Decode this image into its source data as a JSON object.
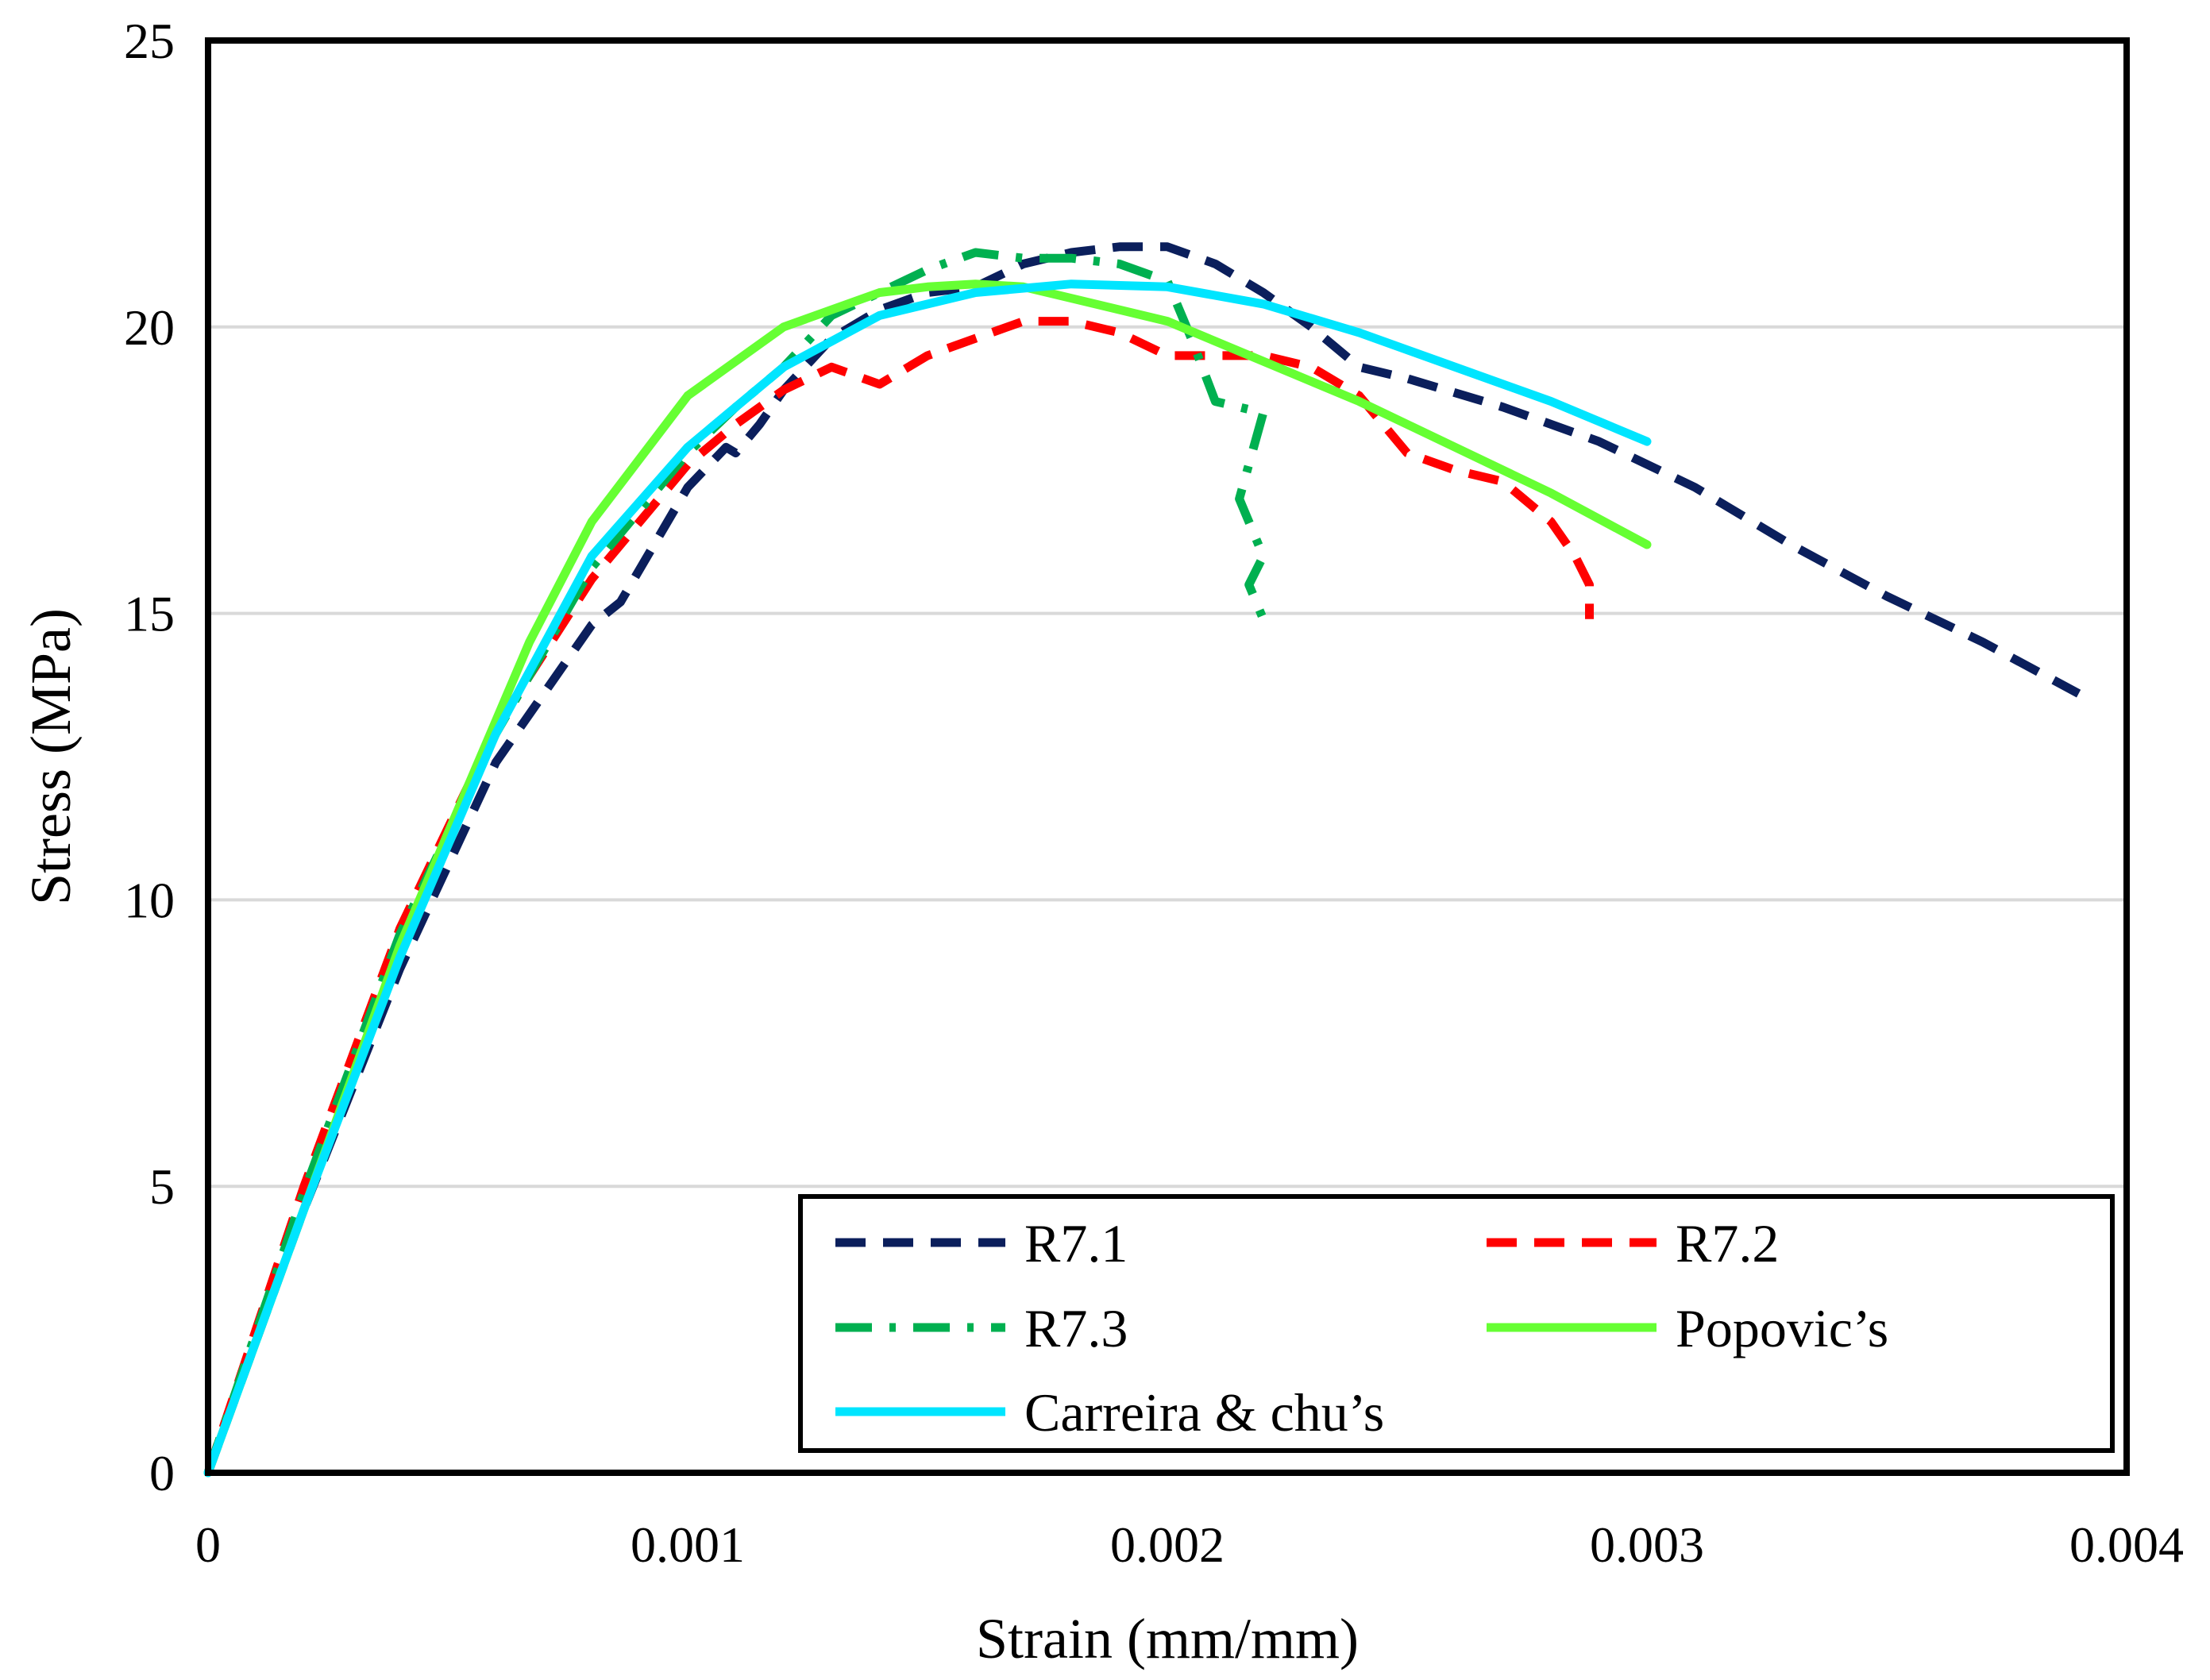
{
  "chart_data": {
    "type": "line",
    "title": "",
    "xlabel": "Strain (mm/mm)",
    "ylabel": "Stress (MPa)",
    "xlim": [
      0,
      0.004
    ],
    "ylim": [
      0,
      25
    ],
    "x_ticks": [
      0,
      0.001,
      0.002,
      0.003,
      0.004
    ],
    "x_tick_labels": [
      "0",
      "0.001",
      "0.002",
      "0.003",
      "0.004"
    ],
    "y_ticks": [
      0,
      5,
      10,
      15,
      20,
      25
    ],
    "y_tick_labels": [
      "0",
      "5",
      "10",
      "15",
      "20",
      "25"
    ],
    "grid": "horizontal",
    "legend_position": "bottom-right",
    "series": [
      {
        "name": "R7.1",
        "color": "#0b1f5c",
        "style": "dashed",
        "x": [
          0,
          0.0002,
          0.0004,
          0.0006,
          0.0008,
          0.00086,
          0.001,
          0.00108,
          0.0011,
          0.00115,
          0.0012,
          0.0013,
          0.0014,
          0.0015,
          0.0016,
          0.0017,
          0.0018,
          0.0019,
          0.002,
          0.0021,
          0.0022,
          0.0023,
          0.0024,
          0.0025,
          0.0027,
          0.0029,
          0.0031,
          0.0033,
          0.0035,
          0.0037,
          0.0039
        ],
        "y": [
          0,
          4.6,
          8.8,
          12.4,
          14.8,
          15.2,
          17.2,
          17.9,
          17.8,
          18.3,
          18.9,
          19.8,
          20.3,
          20.6,
          20.7,
          21.1,
          21.3,
          21.4,
          21.4,
          21.1,
          20.6,
          20.0,
          19.3,
          19.1,
          18.6,
          18.0,
          17.2,
          16.2,
          15.3,
          14.5,
          13.6
        ]
      },
      {
        "name": "R7.2",
        "color": "#ff0000",
        "style": "dashed",
        "x": [
          0,
          0.0002,
          0.0004,
          0.0006,
          0.0008,
          0.001,
          0.0011,
          0.0012,
          0.0013,
          0.0014,
          0.0015,
          0.0016,
          0.0017,
          0.0018,
          0.0019,
          0.002,
          0.0021,
          0.0022,
          0.0023,
          0.0024,
          0.0025,
          0.0026,
          0.0027,
          0.0028,
          0.00285,
          0.00288,
          0.00288
        ],
        "y": [
          0,
          5.0,
          9.5,
          13.0,
          15.6,
          17.6,
          18.3,
          18.9,
          19.3,
          19.0,
          19.5,
          19.8,
          20.1,
          20.1,
          19.9,
          19.5,
          19.5,
          19.5,
          19.3,
          18.8,
          17.8,
          17.5,
          17.3,
          16.6,
          16.0,
          15.5,
          14.9
        ]
      },
      {
        "name": "R7.3",
        "color": "#00b050",
        "style": "dash-dot",
        "x": [
          0,
          0.0002,
          0.0004,
          0.0006,
          0.0008,
          0.001,
          0.0011,
          0.0012,
          0.0013,
          0.0014,
          0.0015,
          0.0016,
          0.0017,
          0.0018,
          0.0019,
          0.002,
          0.00205,
          0.0021,
          0.0022,
          0.00215,
          0.0022,
          0.00217,
          0.0022
        ],
        "y": [
          0,
          4.9,
          9.4,
          12.9,
          15.8,
          17.8,
          18.6,
          19.3,
          20.2,
          20.6,
          21.0,
          21.3,
          21.2,
          21.2,
          21.1,
          20.8,
          19.8,
          18.7,
          18.5,
          17.0,
          16.0,
          15.5,
          14.9
        ]
      },
      {
        "name": "Popovic’s",
        "color": "#66ff33",
        "style": "solid",
        "x": [
          0,
          0.0002,
          0.0004,
          0.00067,
          0.0008,
          0.001,
          0.0012,
          0.0014,
          0.0015,
          0.0016,
          0.0017,
          0.0018,
          0.002,
          0.0022,
          0.0024,
          0.0026,
          0.0028,
          0.003
        ],
        "y": [
          0,
          4.6,
          9.2,
          14.5,
          16.6,
          18.8,
          20.0,
          20.6,
          20.7,
          20.75,
          20.7,
          20.5,
          20.1,
          19.4,
          18.7,
          17.9,
          17.1,
          16.2
        ]
      },
      {
        "name": "Carreira & chu’s",
        "color": "#00e5ff",
        "style": "solid",
        "x": [
          0,
          0.0002,
          0.0004,
          0.0006,
          0.0008,
          0.001,
          0.0012,
          0.0014,
          0.0016,
          0.0018,
          0.002,
          0.0022,
          0.0024,
          0.0026,
          0.0028,
          0.003
        ],
        "y": [
          0,
          4.6,
          9.0,
          12.9,
          16.0,
          17.9,
          19.3,
          20.2,
          20.6,
          20.75,
          20.7,
          20.4,
          19.9,
          19.3,
          18.7,
          18.0
        ]
      }
    ]
  }
}
